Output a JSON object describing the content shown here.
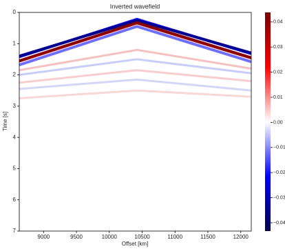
{
  "chart_data": {
    "type": "heatmap",
    "title": "Inverted wavefield",
    "x_label": "Offset [km]",
    "y_label": "Time [s]",
    "xlim": [
      8630,
      12160
    ],
    "ylim": [
      0,
      7
    ],
    "y_inverted": true,
    "xticks": [
      9000,
      9500,
      10000,
      10500,
      11000,
      11500,
      12000
    ],
    "yticks": [
      0,
      1,
      2,
      3,
      4,
      5,
      6,
      7
    ],
    "clim": [
      -0.0433,
      0.0438
    ],
    "colormap": [
      "#00004d",
      "#0000ff",
      "#ffffff",
      "#ff0000",
      "#7a0000"
    ],
    "cticks": [
      {
        "value": -0.04,
        "label": "−0.04"
      },
      {
        "value": -0.03,
        "label": "−0.03"
      },
      {
        "value": -0.02,
        "label": "−0.02"
      },
      {
        "value": -0.01,
        "label": "−0.01"
      },
      {
        "value": 0,
        "label": "0.00"
      },
      0.01,
      0.02,
      0.03,
      0.04
    ],
    "series": [
      {
        "color": "#1010ff",
        "x": [
          8630,
          10420,
          12160
        ],
        "values": [
          1.42,
          0.22,
          1.32
        ]
      },
      {
        "color": "#000090",
        "x": [
          8630,
          10420,
          12160
        ],
        "values": [
          1.4,
          0.25,
          1.3
        ]
      },
      {
        "color": "#e00000",
        "x": [
          8630,
          10420,
          12160
        ],
        "values": [
          1.56,
          0.34,
          1.46
        ]
      },
      {
        "color": "#8a0000",
        "x": [
          8630,
          10420,
          12160
        ],
        "values": [
          1.55,
          0.33,
          1.45
        ]
      },
      {
        "color": "#6f6fff",
        "x": [
          8630,
          10420,
          12160
        ],
        "values": [
          1.68,
          0.45,
          1.58
        ]
      },
      {
        "color": "#f2b0b0",
        "x": [
          8630,
          10420,
          12160
        ],
        "values": [
          1.85,
          1.2,
          1.8
        ]
      },
      {
        "color": "#b8c0f5",
        "x": [
          8630,
          10420,
          12160
        ],
        "values": [
          2.0,
          1.5,
          1.95
        ]
      },
      {
        "color": "#f5c0c0",
        "x": [
          8630,
          10420,
          12160
        ],
        "values": [
          2.25,
          1.85,
          2.2
        ]
      },
      {
        "color": "#c8ccf5",
        "x": [
          8630,
          10420,
          12160
        ],
        "values": [
          2.45,
          2.15,
          2.5
        ]
      },
      {
        "color": "#f5cccc",
        "x": [
          8630,
          10420,
          12160
        ],
        "values": [
          2.75,
          2.5,
          2.7
        ]
      }
    ]
  }
}
